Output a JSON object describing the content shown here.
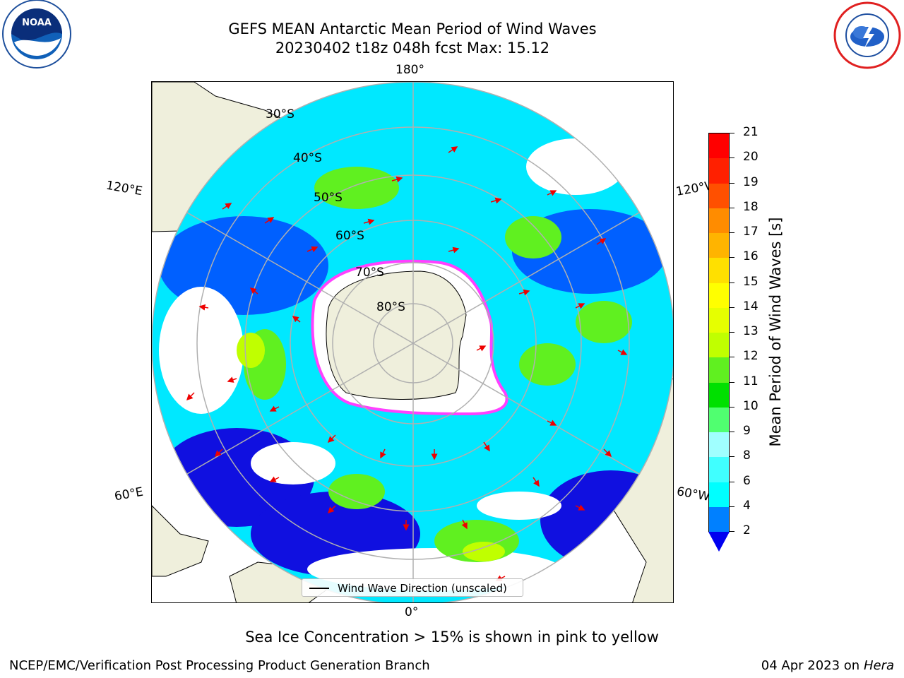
{
  "header": {
    "title_line1": "GEFS MEAN Antarctic Mean Period of Wind Waves",
    "title_line2": "20230402 t18z 048h fcst   Max: 15.12"
  },
  "logos": {
    "left": {
      "icon": "noaa-logo-icon",
      "text": "NOAA"
    },
    "right": {
      "icon": "nws-logo-icon"
    }
  },
  "map": {
    "projection": "south-polar-stereographic",
    "lon_labels": {
      "top": "180°",
      "upper_left": "120°E",
      "upper_right": "120°W",
      "lower_left": "60°E",
      "lower_right": "60°W",
      "bottom": "0°"
    },
    "lat_labels": [
      "30°S",
      "40°S",
      "50°S",
      "60°S",
      "70°S",
      "80°S"
    ],
    "ice_note": "Sea Ice Concentration > 15% is shown in pink to yellow",
    "legend": "Wind Wave Direction (unscaled)",
    "land_color": "#efefdc",
    "ice_edge_color": "#ff40ff"
  },
  "colorbar": {
    "label": "Mean Period of Wind Waves [s]",
    "ticks": [
      "2",
      "4",
      "6",
      "8",
      "9",
      "10",
      "11",
      "12",
      "13",
      "14",
      "15",
      "16",
      "17",
      "18",
      "19",
      "20",
      "21"
    ],
    "colors": [
      "#0000f0",
      "#0080ff",
      "#00ffff",
      "#40ffff",
      "#a0ffff",
      "#50ff70",
      "#00e000",
      "#60f020",
      "#c0ff00",
      "#e6ff00",
      "#ffff00",
      "#ffe000",
      "#ffb400",
      "#ff8c00",
      "#ff5000",
      "#ff2000",
      "#ff0000"
    ],
    "extend_color": "#0000f0"
  },
  "footer": {
    "left": "NCEP/EMC/Verification Post Processing Product Generation Branch",
    "right_date": "04 Apr 2023 on",
    "right_host": "Hera"
  }
}
